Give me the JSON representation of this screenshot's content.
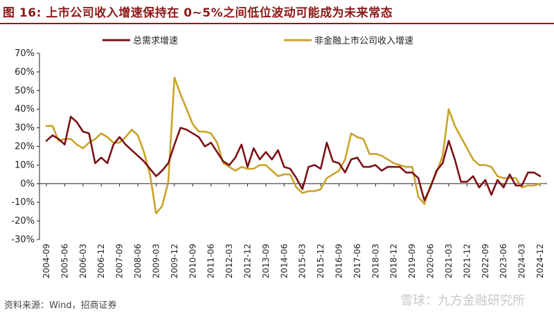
{
  "title": "图 16:  上市公司收入增速保持在 0~5%之间低位波动可能成为未来常态",
  "source": "资料来源：Wind，招商证券",
  "watermark": "雪球：九方金融研究所",
  "colors": {
    "title": "#8b1a1a",
    "series1": "#7b1016",
    "series2": "#c9a227"
  },
  "chart_data": {
    "type": "line",
    "title": "",
    "xlabel": "",
    "ylabel": "",
    "ylim": [
      -30,
      70
    ],
    "y_ticks": [
      "70%",
      "60%",
      "50%",
      "40%",
      "30%",
      "20%",
      "10%",
      "0%",
      "-10%",
      "-20%",
      "-30%"
    ],
    "x_tick_labels": [
      "2004-09",
      "2005-06",
      "2006-03",
      "2006-12",
      "2007-09",
      "2008-06",
      "2009-03",
      "2009-12",
      "2010-09",
      "2011-06",
      "2012-03",
      "2012-12",
      "2013-09",
      "2014-06",
      "2015-03",
      "2015-12",
      "2016-09",
      "2017-06",
      "2018-03",
      "2018-12",
      "2019-09",
      "2020-06",
      "2021-03",
      "2021-12",
      "2022-09",
      "2023-06",
      "2024-03",
      "2024-12"
    ],
    "grid": false,
    "legend": "top",
    "series": [
      {
        "name": "总需求增速",
        "points": [
          [
            "2004-09",
            23
          ],
          [
            "2004-12",
            26
          ],
          [
            "2005-03",
            24
          ],
          [
            "2005-06",
            21
          ],
          [
            "2005-09",
            36
          ],
          [
            "2005-12",
            33
          ],
          [
            "2006-03",
            28
          ],
          [
            "2006-06",
            27
          ],
          [
            "2006-09",
            11
          ],
          [
            "2006-12",
            14
          ],
          [
            "2007-03",
            11
          ],
          [
            "2007-06",
            21
          ],
          [
            "2007-09",
            25
          ],
          [
            "2007-12",
            21
          ],
          [
            "2008-03",
            18
          ],
          [
            "2008-06",
            15
          ],
          [
            "2008-09",
            12
          ],
          [
            "2008-12",
            8
          ],
          [
            "2009-03",
            4
          ],
          [
            "2009-06",
            7
          ],
          [
            "2009-09",
            11
          ],
          [
            "2009-12",
            21
          ],
          [
            "2010-03",
            30
          ],
          [
            "2010-06",
            29
          ],
          [
            "2010-09",
            27
          ],
          [
            "2010-12",
            25
          ],
          [
            "2011-03",
            20
          ],
          [
            "2011-06",
            22
          ],
          [
            "2011-09",
            17
          ],
          [
            "2011-12",
            12
          ],
          [
            "2012-03",
            10
          ],
          [
            "2012-06",
            14
          ],
          [
            "2012-09",
            21
          ],
          [
            "2012-12",
            9
          ],
          [
            "2013-03",
            19
          ],
          [
            "2013-06",
            13
          ],
          [
            "2013-09",
            17
          ],
          [
            "2013-12",
            13
          ],
          [
            "2014-03",
            18
          ],
          [
            "2014-06",
            9
          ],
          [
            "2014-09",
            8
          ],
          [
            "2014-12",
            3
          ],
          [
            "2015-03",
            -3
          ],
          [
            "2015-06",
            9
          ],
          [
            "2015-09",
            10
          ],
          [
            "2015-12",
            8
          ],
          [
            "2016-03",
            22
          ],
          [
            "2016-06",
            12
          ],
          [
            "2016-09",
            11
          ],
          [
            "2016-12",
            6
          ],
          [
            "2017-03",
            13
          ],
          [
            "2017-06",
            14
          ],
          [
            "2017-09",
            9
          ],
          [
            "2017-12",
            9
          ],
          [
            "2018-03",
            10
          ],
          [
            "2018-06",
            7
          ],
          [
            "2018-09",
            9
          ],
          [
            "2018-12",
            9
          ],
          [
            "2019-03",
            9
          ],
          [
            "2019-06",
            6
          ],
          [
            "2019-09",
            6
          ],
          [
            "2019-12",
            3
          ],
          [
            "2020-03",
            -9
          ],
          [
            "2020-06",
            -2
          ],
          [
            "2020-09",
            7
          ],
          [
            "2020-12",
            11
          ],
          [
            "2021-03",
            23
          ],
          [
            "2021-06",
            13
          ],
          [
            "2021-09",
            1
          ],
          [
            "2021-12",
            1
          ],
          [
            "2022-03",
            4
          ],
          [
            "2022-06",
            -2
          ],
          [
            "2022-09",
            2
          ],
          [
            "2022-12",
            -6
          ],
          [
            "2023-03",
            2
          ],
          [
            "2023-06",
            -2
          ],
          [
            "2023-09",
            5
          ],
          [
            "2023-12",
            -1
          ],
          [
            "2024-03",
            -1
          ],
          [
            "2024-06",
            6
          ],
          [
            "2024-09",
            6
          ],
          [
            "2024-12",
            4
          ]
        ]
      },
      {
        "name": "非金融上市公司收入增速",
        "points": [
          [
            "2004-09",
            31
          ],
          [
            "2004-12",
            31
          ],
          [
            "2005-03",
            23
          ],
          [
            "2005-06",
            24
          ],
          [
            "2005-09",
            24
          ],
          [
            "2005-12",
            21
          ],
          [
            "2006-03",
            19
          ],
          [
            "2006-06",
            22
          ],
          [
            "2006-09",
            24
          ],
          [
            "2006-12",
            27
          ],
          [
            "2007-03",
            25
          ],
          [
            "2007-06",
            22
          ],
          [
            "2007-09",
            22
          ],
          [
            "2007-12",
            25
          ],
          [
            "2008-03",
            29
          ],
          [
            "2008-06",
            26
          ],
          [
            "2008-09",
            17
          ],
          [
            "2008-12",
            5
          ],
          [
            "2009-03",
            -16
          ],
          [
            "2009-06",
            -12
          ],
          [
            "2009-09",
            1
          ],
          [
            "2009-12",
            57
          ],
          [
            "2010-03",
            48
          ],
          [
            "2010-06",
            40
          ],
          [
            "2010-09",
            32
          ],
          [
            "2010-12",
            28
          ],
          [
            "2011-03",
            28
          ],
          [
            "2011-06",
            27
          ],
          [
            "2011-09",
            22
          ],
          [
            "2011-12",
            11
          ],
          [
            "2012-03",
            9
          ],
          [
            "2012-06",
            7
          ],
          [
            "2012-09",
            9
          ],
          [
            "2012-12",
            8
          ],
          [
            "2013-03",
            8
          ],
          [
            "2013-06",
            10
          ],
          [
            "2013-09",
            10
          ],
          [
            "2013-12",
            7
          ],
          [
            "2014-03",
            4
          ],
          [
            "2014-06",
            5
          ],
          [
            "2014-09",
            5
          ],
          [
            "2014-12",
            -2
          ],
          [
            "2015-03",
            -5
          ],
          [
            "2015-06",
            -4
          ],
          [
            "2015-09",
            -4
          ],
          [
            "2015-12",
            -3
          ],
          [
            "2016-03",
            3
          ],
          [
            "2016-06",
            5
          ],
          [
            "2016-09",
            7
          ],
          [
            "2016-12",
            13
          ],
          [
            "2017-03",
            27
          ],
          [
            "2017-06",
            25
          ],
          [
            "2017-09",
            24
          ],
          [
            "2017-12",
            16
          ],
          [
            "2018-03",
            16
          ],
          [
            "2018-06",
            15
          ],
          [
            "2018-09",
            13
          ],
          [
            "2018-12",
            11
          ],
          [
            "2019-03",
            10
          ],
          [
            "2019-06",
            9
          ],
          [
            "2019-09",
            9
          ],
          [
            "2019-12",
            -7
          ],
          [
            "2020-03",
            -11
          ],
          [
            "2020-06",
            -1
          ],
          [
            "2020-09",
            6
          ],
          [
            "2020-12",
            15
          ],
          [
            "2021-03",
            40
          ],
          [
            "2021-06",
            31
          ],
          [
            "2021-09",
            25
          ],
          [
            "2021-12",
            19
          ],
          [
            "2022-03",
            13
          ],
          [
            "2022-06",
            10
          ],
          [
            "2022-09",
            10
          ],
          [
            "2022-12",
            9
          ],
          [
            "2023-03",
            4
          ],
          [
            "2023-06",
            3
          ],
          [
            "2023-09",
            3
          ],
          [
            "2023-12",
            3
          ],
          [
            "2024-03",
            -2
          ],
          [
            "2024-06",
            -1
          ],
          [
            "2024-09",
            -1
          ],
          [
            "2024-12",
            0
          ]
        ]
      }
    ]
  }
}
